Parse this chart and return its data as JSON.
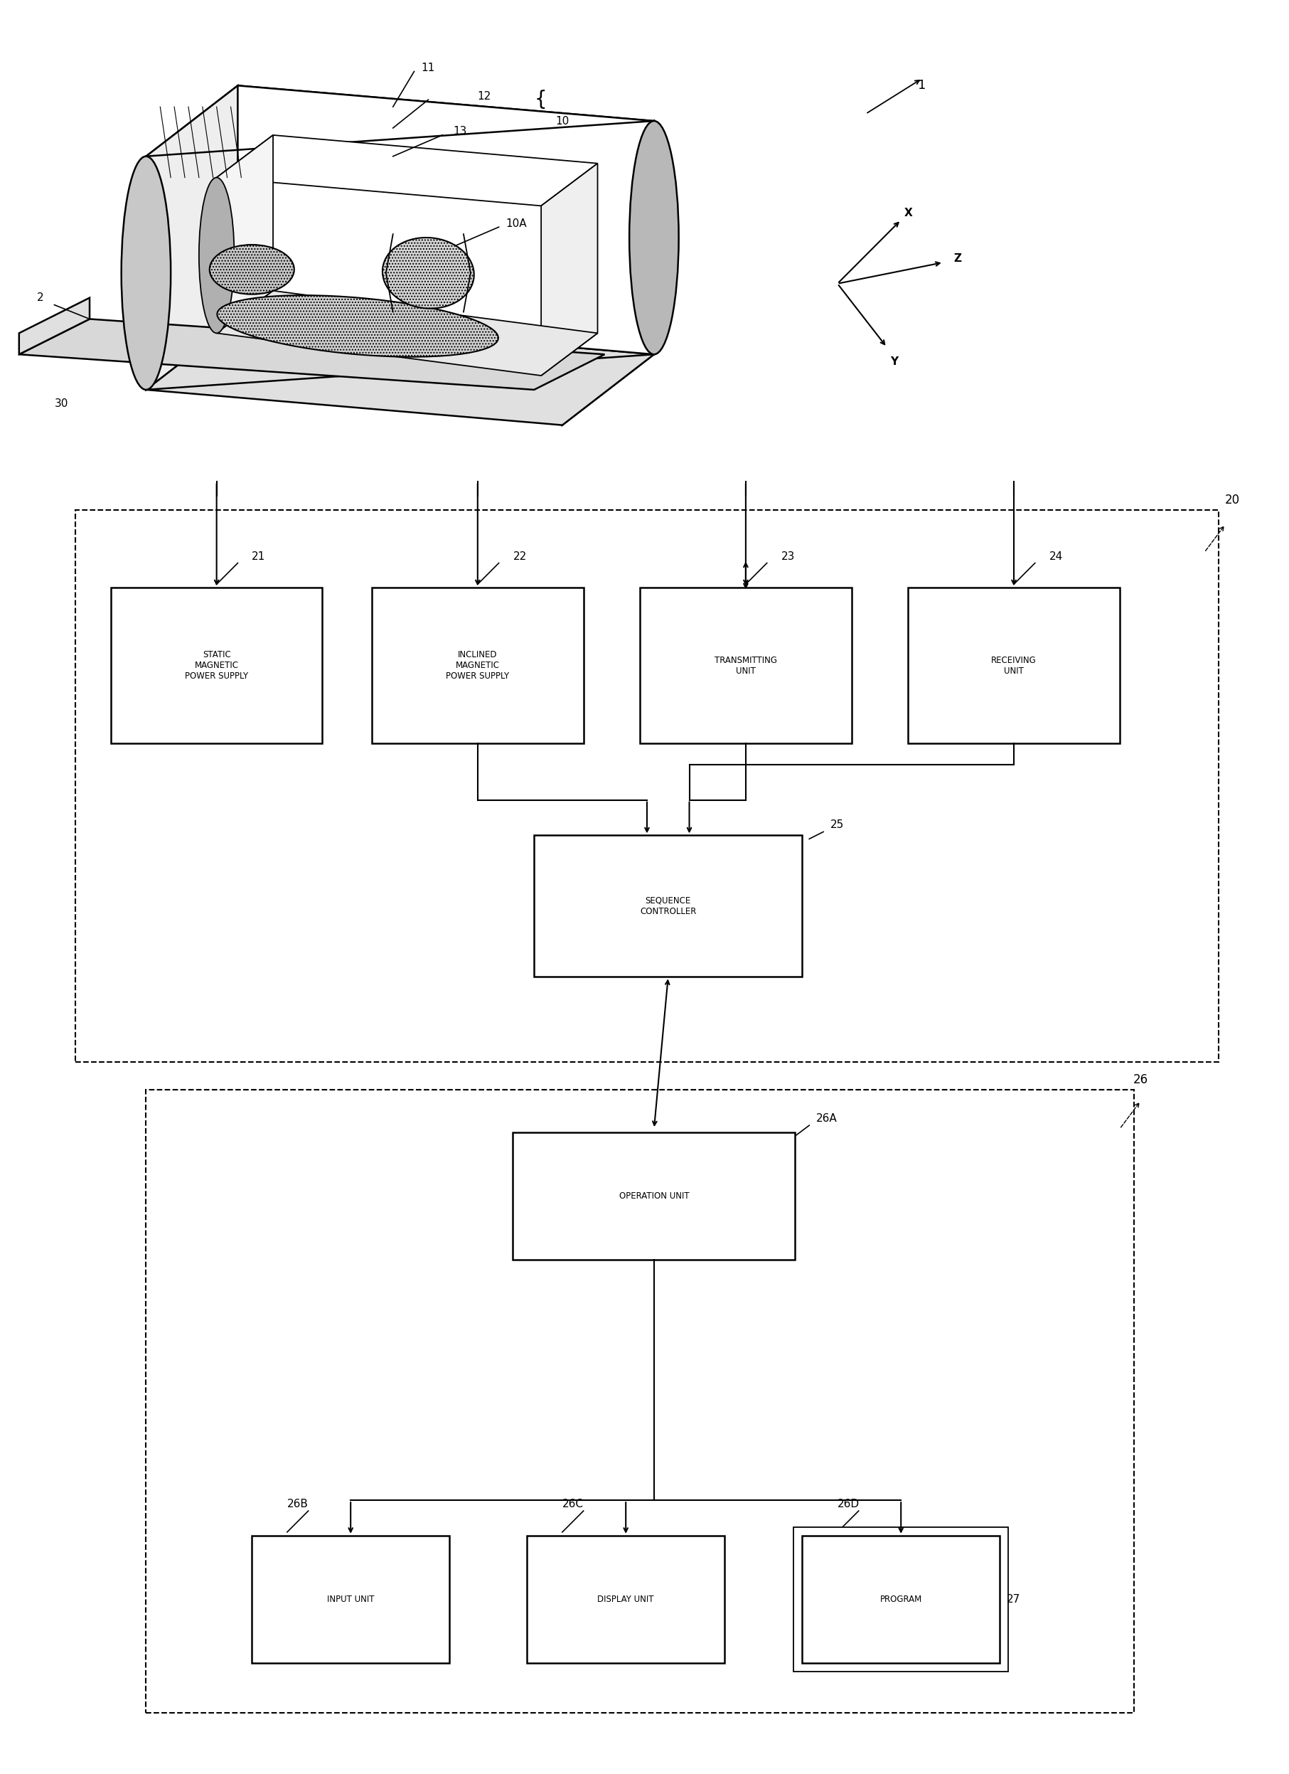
{
  "fig_width": 18.13,
  "fig_height": 24.94,
  "bg_color": "#ffffff",
  "line_color": "#000000",
  "label_1": "1",
  "label_2": "2",
  "label_10": "10",
  "label_10A": "10A",
  "label_11": "11",
  "label_12": "12",
  "label_13": "13",
  "label_20": "20",
  "label_21": "21",
  "label_22": "22",
  "label_23": "23",
  "label_24": "24",
  "label_25": "25",
  "label_26": "26",
  "label_26A": "26A",
  "label_26B": "26B",
  "label_26C": "26C",
  "label_26D": "26D",
  "label_27": "27",
  "label_30": "30",
  "box21_text": "STATIC\nMAGNETIC\nPOWER SUPPLY",
  "box22_text": "INCLINED\nMAGNETIC\nPOWER SUPPLY",
  "box23_text": "TRANSMITTING\nUNIT",
  "box24_text": "RECEIVING\nUNIT",
  "box25_text": "SEQUENCE\nCONTROLLER",
  "box26A_text": "OPERATION UNIT",
  "box26B_text": "INPUT UNIT",
  "box26C_text": "DISPLAY UNIT",
  "box26D_text": "PROGRAM",
  "label_27_text": "27",
  "axis_X": "X",
  "axis_Y": "Y",
  "axis_Z": "Z"
}
